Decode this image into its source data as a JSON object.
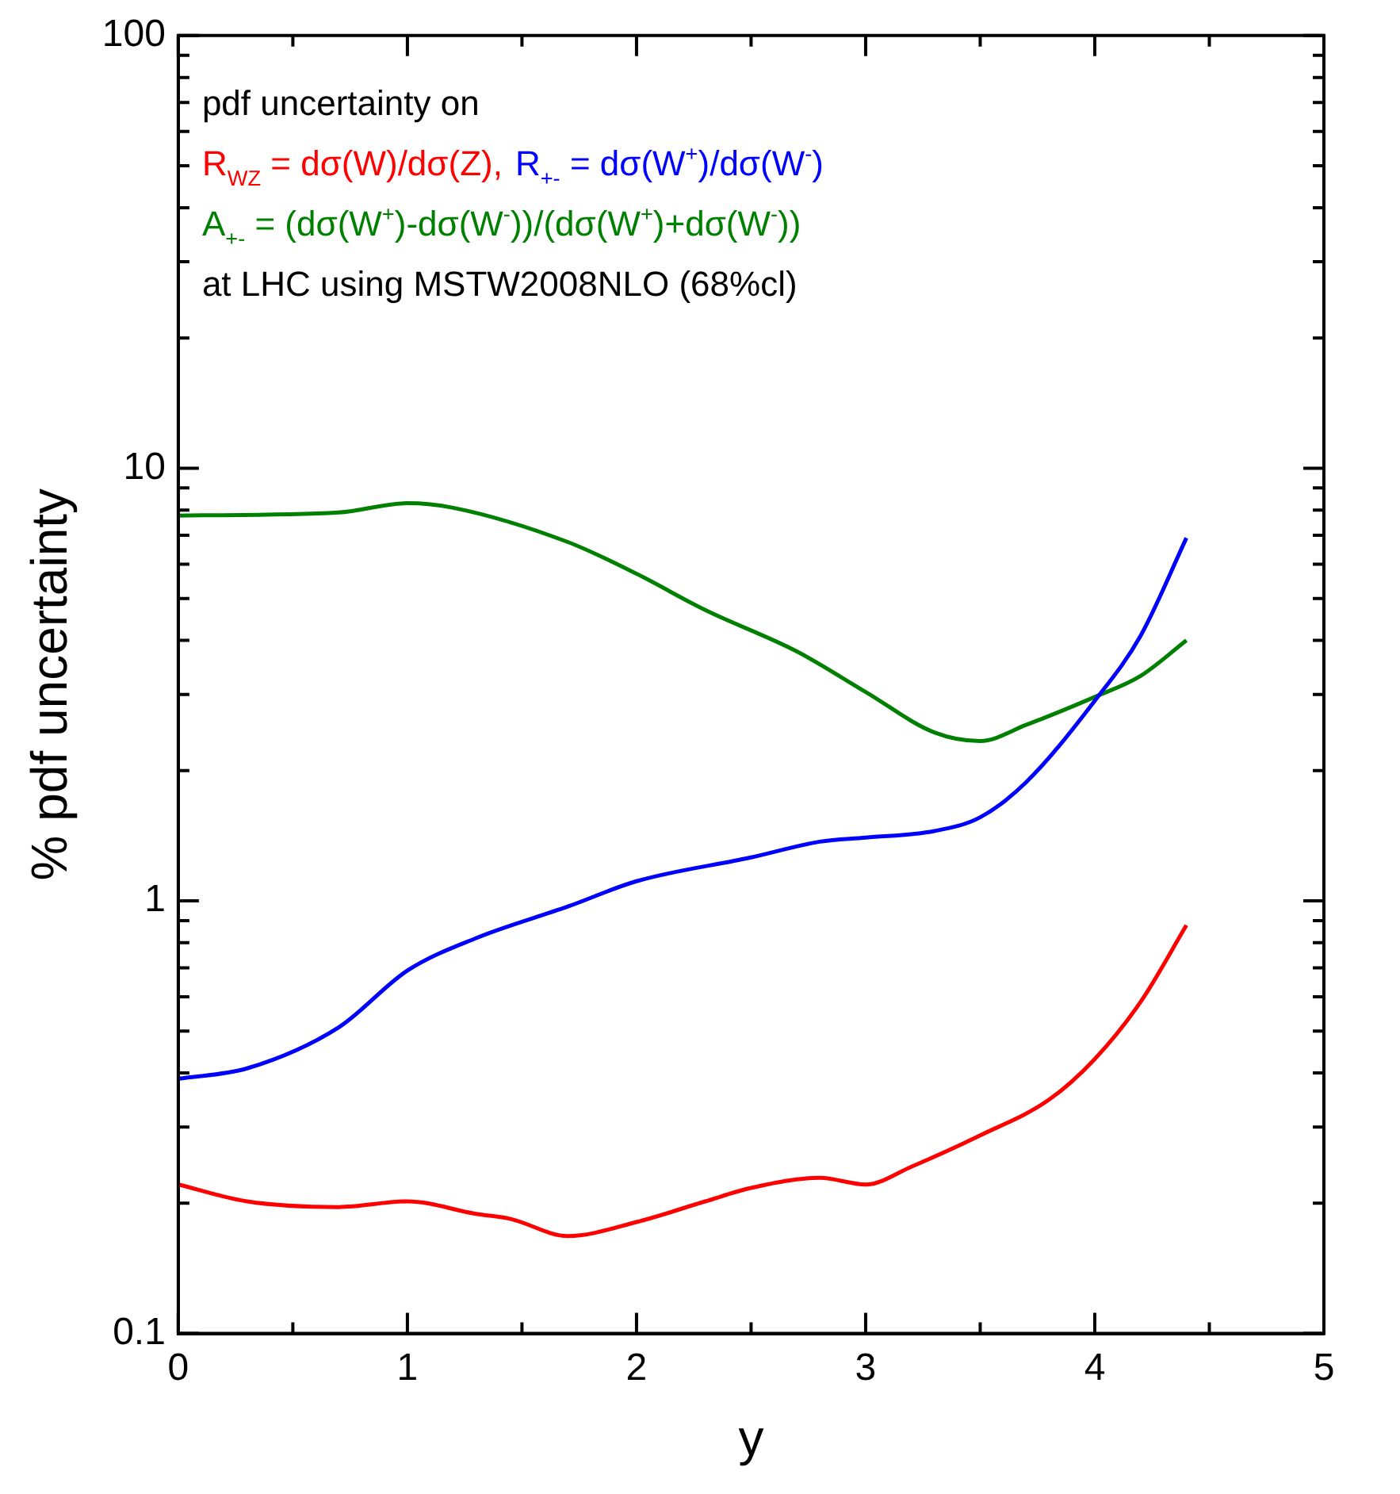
{
  "chart_data": {
    "type": "line",
    "xlabel": "y",
    "ylabel": "% pdf uncertainty",
    "log": "y",
    "grid": false,
    "legend": "top left",
    "marker": "none",
    "line_style": "solid",
    "annotations": [
      "pdf uncertainty on",
      "at LHC using MSTW2008NLO (68%cl)"
    ],
    "xlim": [
      0,
      5
    ],
    "xticks": [
      0,
      {
        "value": 0.5,
        "label": null
      },
      1,
      {
        "value": 1.5,
        "label": null
      },
      2,
      {
        "value": 2.5,
        "label": null
      },
      3,
      {
        "value": 3.5,
        "label": null
      },
      4,
      {
        "value": 4.5,
        "label": null
      },
      5
    ],
    "ylim": [
      0.1,
      100
    ],
    "yticks": [
      0.1,
      {
        "value": 0.2,
        "label": null
      },
      {
        "value": 0.3,
        "label": null
      },
      {
        "value": 0.4,
        "label": null
      },
      {
        "value": 0.5,
        "label": null
      },
      {
        "value": 0.6,
        "label": null
      },
      {
        "value": 0.7,
        "label": null
      },
      {
        "value": 0.8,
        "label": null
      },
      {
        "value": 0.9,
        "label": null
      },
      1,
      {
        "value": 2,
        "label": null
      },
      {
        "value": 3,
        "label": null
      },
      {
        "value": 4,
        "label": null
      },
      {
        "value": 5,
        "label": null
      },
      {
        "value": 6,
        "label": null
      },
      {
        "value": 7,
        "label": null
      },
      {
        "value": 8,
        "label": null
      },
      {
        "value": 9,
        "label": null
      },
      10,
      {
        "value": 20,
        "label": null
      },
      {
        "value": 30,
        "label": null
      },
      {
        "value": 40,
        "label": null
      },
      {
        "value": 50,
        "label": null
      },
      {
        "value": 60,
        "label": null
      },
      {
        "value": 70,
        "label": null
      },
      {
        "value": 80,
        "label": null
      },
      {
        "value": 90,
        "label": null
      },
      100
    ],
    "series": [
      {
        "name": "R$_{WZ}$ = dσ(W)/dσ(Z),",
        "color": "#ff0000",
        "x": [
          0,
          0.3,
          0.7,
          1,
          1.3,
          1.45,
          1.7,
          2,
          2.3,
          2.5,
          2.8,
          3,
          3.2,
          3.5,
          3.8,
          4,
          4.2,
          4.4
        ],
        "values": [
          0.221,
          0.202,
          0.196,
          0.202,
          0.189,
          0.184,
          0.168,
          0.181,
          0.202,
          0.217,
          0.229,
          0.221,
          0.243,
          0.287,
          0.347,
          0.431,
          0.584,
          0.878
        ]
      },
      {
        "name": "R$_{+-}$ = dσ(W$^{+}$)/dσ(W$^{-}$)",
        "color": "#0000ff",
        "x": [
          0,
          0.3,
          0.7,
          1,
          1.3,
          1.7,
          2,
          2.5,
          2.8,
          3,
          3.3,
          3.5,
          3.7,
          4,
          4.2,
          4.4
        ],
        "values": [
          0.388,
          0.41,
          0.51,
          0.69,
          0.82,
          0.97,
          1.11,
          1.26,
          1.37,
          1.4,
          1.45,
          1.56,
          1.88,
          2.9,
          4.1,
          6.9
        ]
      },
      {
        "name": "A$_{+-}$ = (dσ(W$^{+}$)-dσ(W$^{-}$))/(dσ(W$^{+}$)+dσ(W$^{-}$))",
        "color": "#008000",
        "x": [
          0,
          0.7,
          1,
          1.2,
          1.7,
          2,
          2.3,
          2.7,
          3,
          3.3,
          3.5,
          3.7,
          4,
          4.2,
          4.4
        ],
        "values": [
          7.77,
          7.9,
          8.3,
          8.1,
          6.75,
          5.7,
          4.7,
          3.77,
          3.04,
          2.45,
          2.34,
          2.55,
          2.96,
          3.31,
          4.0
        ]
      }
    ]
  }
}
